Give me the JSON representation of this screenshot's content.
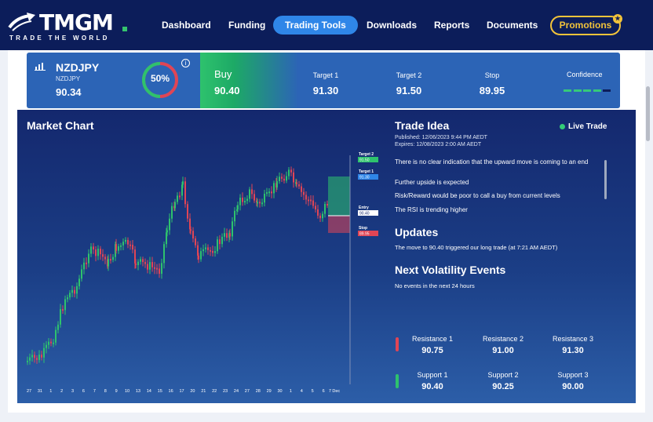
{
  "brand": {
    "name": "TMGM",
    "tagline": "TRADE THE WORLD"
  },
  "nav": {
    "items": [
      "Dashboard",
      "Funding",
      "Trading Tools",
      "Downloads",
      "Reports",
      "Documents"
    ],
    "active": "Trading Tools",
    "promotions": "Promotions"
  },
  "instrument": {
    "symbol": "NZDJPY",
    "symbol_sub": "NZDJPY",
    "price": "90.34",
    "percent": "50%",
    "info": "i",
    "direction": "Buy",
    "entry": "90.40",
    "target1_label": "Target 1",
    "target1": "91.30",
    "target2_label": "Target 2",
    "target2": "91.50",
    "stop_label": "Stop",
    "stop": "89.95",
    "confidence_label": "Confidence",
    "confidence": {
      "filled": 4,
      "total": 5
    }
  },
  "colors": {
    "green": "#2ec26d",
    "red": "#e04555",
    "accent": "#2f86e8",
    "promo": "#f2c33a",
    "panel": "#14286e"
  },
  "chart": {
    "title": "Market Chart",
    "x_ticks": [
      "27",
      "31",
      "1",
      "2",
      "3",
      "6",
      "7",
      "8",
      "9",
      "10",
      "13",
      "14",
      "15",
      "16",
      "17",
      "20",
      "21",
      "22",
      "23",
      "24",
      "27",
      "28",
      "29",
      "30",
      "1",
      "4",
      "5",
      "6",
      "7 Dec"
    ],
    "markers": [
      {
        "label": "Target 2",
        "value": "91.50"
      },
      {
        "label": "Target 1",
        "value": "91.30"
      },
      {
        "label": "Entry",
        "value": "90.40"
      },
      {
        "label": "Stop",
        "value": "89.95"
      }
    ]
  },
  "trade_idea": {
    "title": "Trade Idea",
    "live": "Live Trade",
    "published": "Published: 12/06/2023 9:44 PM AEDT",
    "expires": "Expires: 12/08/2023 2:00 AM AEDT",
    "notes": [
      "There is no clear indication that the upward move is coming to an end",
      "Further upside is expected",
      "Risk/Reward would be poor to call a buy from current levels",
      "The RSI is trending higher"
    ]
  },
  "updates": {
    "title": "Updates",
    "text": "The move to 90.40 triggered our long trade (at 7:21 AM AEDT)"
  },
  "volatility": {
    "title": "Next Volatility Events",
    "text": "No events in the next 24 hours"
  },
  "levels": {
    "resistance": [
      {
        "label": "Resistance 1",
        "value": "90.75"
      },
      {
        "label": "Resistance 2",
        "value": "91.00"
      },
      {
        "label": "Resistance 3",
        "value": "91.30"
      }
    ],
    "support": [
      {
        "label": "Support 1",
        "value": "90.40"
      },
      {
        "label": "Support 2",
        "value": "90.25"
      },
      {
        "label": "Support 3",
        "value": "90.00"
      }
    ]
  }
}
